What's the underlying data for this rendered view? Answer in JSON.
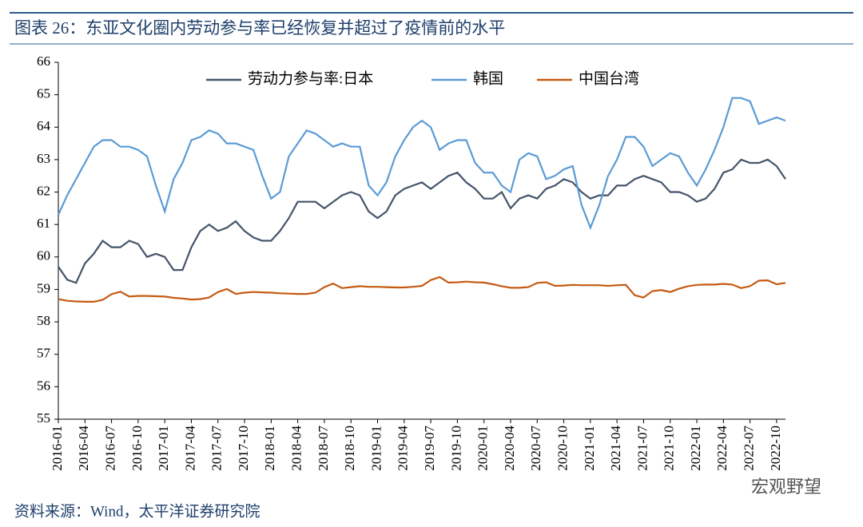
{
  "chart_data": {
    "type": "line",
    "title": "图表 26：东亚文化圈内劳动参与率已经恢复并超过了疫情前的水平",
    "source": "资料来源：Wind，太平洋证券研究院",
    "watermark": "宏观野望",
    "categories": [
      "2016-01",
      null,
      null,
      "2016-04",
      null,
      null,
      "2016-07",
      null,
      null,
      "2016-10",
      null,
      null,
      "2017-01",
      null,
      null,
      "2017-04",
      null,
      null,
      "2017-07",
      null,
      null,
      "2017-10",
      null,
      null,
      "2018-01",
      null,
      null,
      "2018-04",
      null,
      null,
      "2018-07",
      null,
      null,
      "2018-10",
      null,
      null,
      "2019-01",
      null,
      null,
      "2019-04",
      null,
      null,
      "2019-07",
      null,
      null,
      "2019-10",
      null,
      null,
      "2020-01",
      null,
      null,
      "2020-04",
      null,
      null,
      "2020-07",
      null,
      null,
      "2020-10",
      null,
      null,
      "2021-01",
      null,
      null,
      "2021-04",
      null,
      null,
      "2021-07",
      null,
      null,
      "2021-10",
      null,
      null,
      "2022-01",
      null,
      null,
      "2022-04",
      null,
      null,
      "2022-07",
      null,
      null,
      "2022-10",
      null
    ],
    "series": [
      {
        "name": "劳动力参与率:日本",
        "color": "#44546a",
        "values": [
          59.7,
          59.3,
          59.2,
          59.8,
          60.1,
          60.5,
          60.3,
          60.3,
          60.5,
          60.4,
          60.0,
          60.1,
          60.0,
          59.6,
          59.6,
          60.3,
          60.8,
          61.0,
          60.8,
          60.9,
          61.1,
          60.8,
          60.6,
          60.5,
          60.5,
          60.8,
          61.2,
          61.7,
          61.7,
          61.7,
          61.5,
          61.7,
          61.9,
          62.0,
          61.9,
          61.4,
          61.2,
          61.4,
          61.9,
          62.1,
          62.2,
          62.3,
          62.1,
          62.3,
          62.5,
          62.6,
          62.3,
          62.1,
          61.8,
          61.8,
          62.0,
          61.5,
          61.8,
          61.9,
          61.8,
          62.1,
          62.2,
          62.4,
          62.3,
          62.0,
          61.8,
          61.9,
          61.9,
          62.2,
          62.2,
          62.4,
          62.5,
          62.4,
          62.3,
          62.0,
          62.0,
          61.9,
          61.7,
          61.8,
          62.1,
          62.6,
          62.7,
          63.0,
          62.9,
          62.9,
          63.0,
          62.8,
          62.4
        ]
      },
      {
        "name": "韩国",
        "color": "#5b9bd5",
        "values": [
          61.3,
          61.9,
          62.4,
          62.9,
          63.4,
          63.6,
          63.6,
          63.4,
          63.4,
          63.3,
          63.1,
          62.2,
          61.4,
          62.4,
          62.9,
          63.6,
          63.7,
          63.9,
          63.8,
          63.5,
          63.5,
          63.4,
          63.3,
          62.5,
          61.8,
          62.0,
          63.1,
          63.5,
          63.9,
          63.8,
          63.6,
          63.4,
          63.5,
          63.4,
          63.4,
          62.2,
          61.9,
          62.3,
          63.1,
          63.6,
          64.0,
          64.2,
          64.0,
          63.3,
          63.5,
          63.6,
          63.6,
          62.9,
          62.6,
          62.6,
          62.2,
          62.0,
          63.0,
          63.2,
          63.1,
          62.4,
          62.5,
          62.7,
          62.8,
          61.6,
          60.9,
          61.6,
          62.5,
          63.0,
          63.7,
          63.7,
          63.4,
          62.8,
          63.0,
          63.2,
          63.1,
          62.6,
          62.2,
          62.7,
          63.3,
          64.0,
          64.9,
          64.9,
          64.8,
          64.1,
          64.2,
          64.3,
          64.2
        ]
      },
      {
        "name": "中国台湾",
        "color": "#c55a11",
        "values": [
          58.7,
          58.65,
          58.63,
          58.62,
          58.62,
          58.68,
          58.85,
          58.93,
          58.78,
          58.8,
          58.8,
          58.79,
          58.78,
          58.74,
          58.72,
          58.69,
          58.7,
          58.75,
          58.92,
          59.01,
          58.86,
          58.9,
          58.92,
          58.91,
          58.9,
          58.88,
          58.87,
          58.86,
          58.86,
          58.9,
          59.07,
          59.18,
          59.04,
          59.07,
          59.1,
          59.08,
          59.08,
          59.07,
          59.06,
          59.06,
          59.08,
          59.11,
          59.29,
          59.38,
          59.21,
          59.22,
          59.24,
          59.22,
          59.21,
          59.16,
          59.1,
          59.05,
          59.05,
          59.07,
          59.2,
          59.22,
          59.11,
          59.12,
          59.14,
          59.13,
          59.13,
          59.13,
          59.11,
          59.13,
          59.14,
          58.82,
          58.75,
          58.95,
          58.98,
          58.92,
          59.02,
          59.1,
          59.14,
          59.15,
          59.15,
          59.17,
          59.15,
          59.04,
          59.1,
          59.27,
          59.28,
          59.16,
          59.2
        ]
      }
    ],
    "ylim": [
      55,
      66
    ],
    "yticks": [
      55,
      56,
      57,
      58,
      59,
      60,
      61,
      62,
      63,
      64,
      65,
      66
    ],
    "grid": false
  }
}
